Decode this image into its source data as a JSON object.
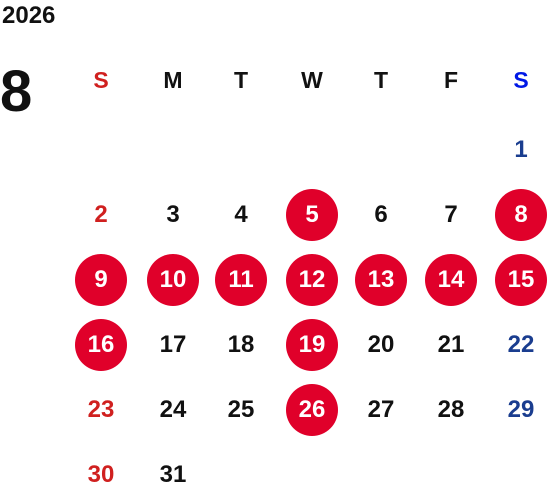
{
  "calendar": {
    "year": "2026",
    "month": "8",
    "colors": {
      "default": "#111111",
      "sunday": "#d0201f",
      "saturday": "#1a3d8f",
      "saturday_header": "#0018e6",
      "highlight": "#e0002a",
      "highlight_text": "#ffffff"
    },
    "weekdays": [
      "S",
      "M",
      "T",
      "W",
      "T",
      "F",
      "S"
    ],
    "weeks": [
      [
        null,
        null,
        null,
        null,
        null,
        null,
        "1"
      ],
      [
        "2",
        "3",
        "4",
        "5",
        "6",
        "7",
        "8"
      ],
      [
        "9",
        "10",
        "11",
        "12",
        "13",
        "14",
        "15"
      ],
      [
        "16",
        "17",
        "18",
        "19",
        "20",
        "21",
        "22"
      ],
      [
        "23",
        "24",
        "25",
        "26",
        "27",
        "28",
        "29"
      ],
      [
        "30",
        "31",
        null,
        null,
        null,
        null,
        null
      ]
    ],
    "highlighted_days": [
      "5",
      "8",
      "9",
      "10",
      "11",
      "12",
      "13",
      "14",
      "15",
      "16",
      "19",
      "26"
    ]
  }
}
